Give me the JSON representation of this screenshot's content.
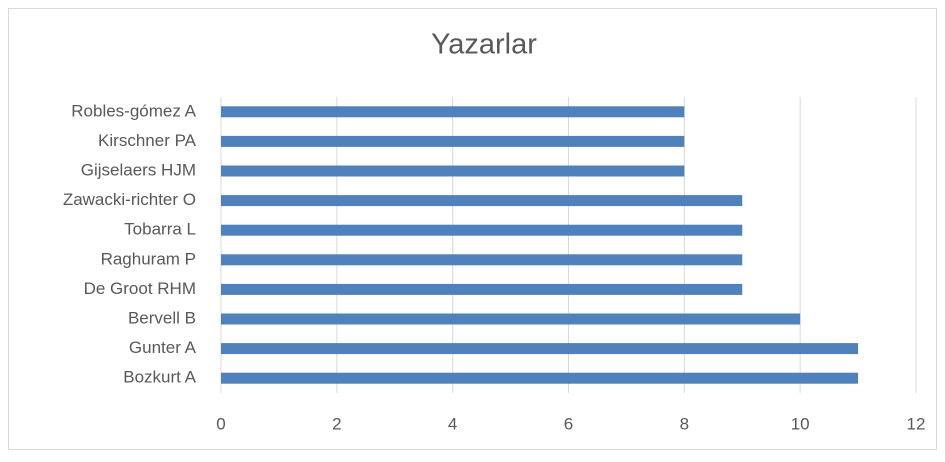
{
  "chart_data": {
    "type": "bar",
    "orientation": "horizontal",
    "title": "Yazarlar",
    "categories": [
      "Robles-gómez A",
      "Kirschner PA",
      "Gijselaers HJM",
      "Zawacki-richter O",
      "Tobarra L",
      "Raghuram P",
      "De Groot RHM",
      "Bervell B",
      "Gunter A",
      "Bozkurt A"
    ],
    "values": [
      8,
      8,
      8,
      9,
      9,
      9,
      9,
      10,
      11,
      11
    ],
    "color": "#4f81bd",
    "xlim": [
      0,
      12
    ],
    "xticks": [
      0,
      2,
      4,
      6,
      8,
      10,
      12
    ],
    "grid": true
  }
}
